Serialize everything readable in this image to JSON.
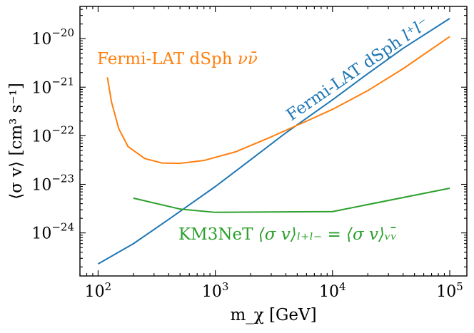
{
  "chart_data": {
    "type": "line",
    "xscale": "log",
    "yscale": "log",
    "xlim": [
      70,
      140000
    ],
    "ylim": [
      1.3e-25,
      4.6e-20
    ],
    "xlabel": "m_χ [GeV]",
    "ylabel": "⟨σ v⟩ [cm³ s⁻¹]",
    "grid": false,
    "xticks": [
      {
        "value": 100,
        "base": "10",
        "exp": "2"
      },
      {
        "value": 1000,
        "base": "10",
        "exp": "3"
      },
      {
        "value": 10000,
        "base": "10",
        "exp": "4"
      },
      {
        "value": 100000,
        "base": "10",
        "exp": "5"
      }
    ],
    "yticks": [
      {
        "value": 1e-24,
        "base": "10",
        "exp": "−24"
      },
      {
        "value": 1e-23,
        "base": "10",
        "exp": "−23"
      },
      {
        "value": 1e-22,
        "base": "10",
        "exp": "−22"
      },
      {
        "value": 1e-21,
        "base": "10",
        "exp": "−21"
      },
      {
        "value": 1e-20,
        "base": "10",
        "exp": "−20"
      }
    ],
    "series": [
      {
        "name": "Fermi-LAT dSph l⁺l⁻",
        "color": "#1f77b4",
        "x": [
          100,
          200,
          400,
          1000,
          2000,
          4000,
          10000,
          20000,
          40000,
          100000
        ],
        "y": [
          2.3e-25,
          6e-25,
          1.9e-24,
          9e-24,
          3.2e-23,
          1.15e-22,
          5.5e-22,
          1.9e-21,
          6.3e-21,
          2.6e-20
        ]
      },
      {
        "name": "Fermi-LAT dSph νν̄",
        "color": "#ff7f0e",
        "x": [
          120,
          130,
          150,
          180,
          250,
          350,
          500,
          800,
          1500,
          3000,
          6000,
          10000,
          20000,
          40000,
          100000
        ],
        "y": [
          1.6e-21,
          5e-22,
          1.4e-22,
          6e-23,
          3.4e-23,
          2.75e-23,
          2.7e-23,
          3.1e-23,
          4.7e-23,
          9.5e-23,
          2e-22,
          3.5e-22,
          8.5e-22,
          2.4e-21,
          1.1e-20
        ]
      },
      {
        "name": "KM3NeT ⟨σ v⟩_{l⁺l⁻} = ⟨σ v⟩_{νν̄}",
        "color": "#2ca02c",
        "x": [
          200,
          500,
          1000,
          10000,
          100000
        ],
        "y": [
          5.2e-24,
          3.1e-24,
          2.65e-24,
          2.75e-24,
          8.3e-24
        ]
      }
    ],
    "annotations": [
      {
        "series": 0,
        "text_main": "Fermi-LAT dSph ",
        "text_math": "l⁺l⁻",
        "color": "#1f77b4"
      },
      {
        "series": 1,
        "text_main": "Fermi-LAT dSph ",
        "text_math": "νν̄",
        "color": "#ff7f0e"
      },
      {
        "series": 2,
        "text_main": "KM3NeT ",
        "text_math": "⟨σ v⟩ₗ₊ₗ₋ = ⟨σ v⟩ᵥᵥ̄",
        "color": "#2ca02c"
      }
    ]
  }
}
